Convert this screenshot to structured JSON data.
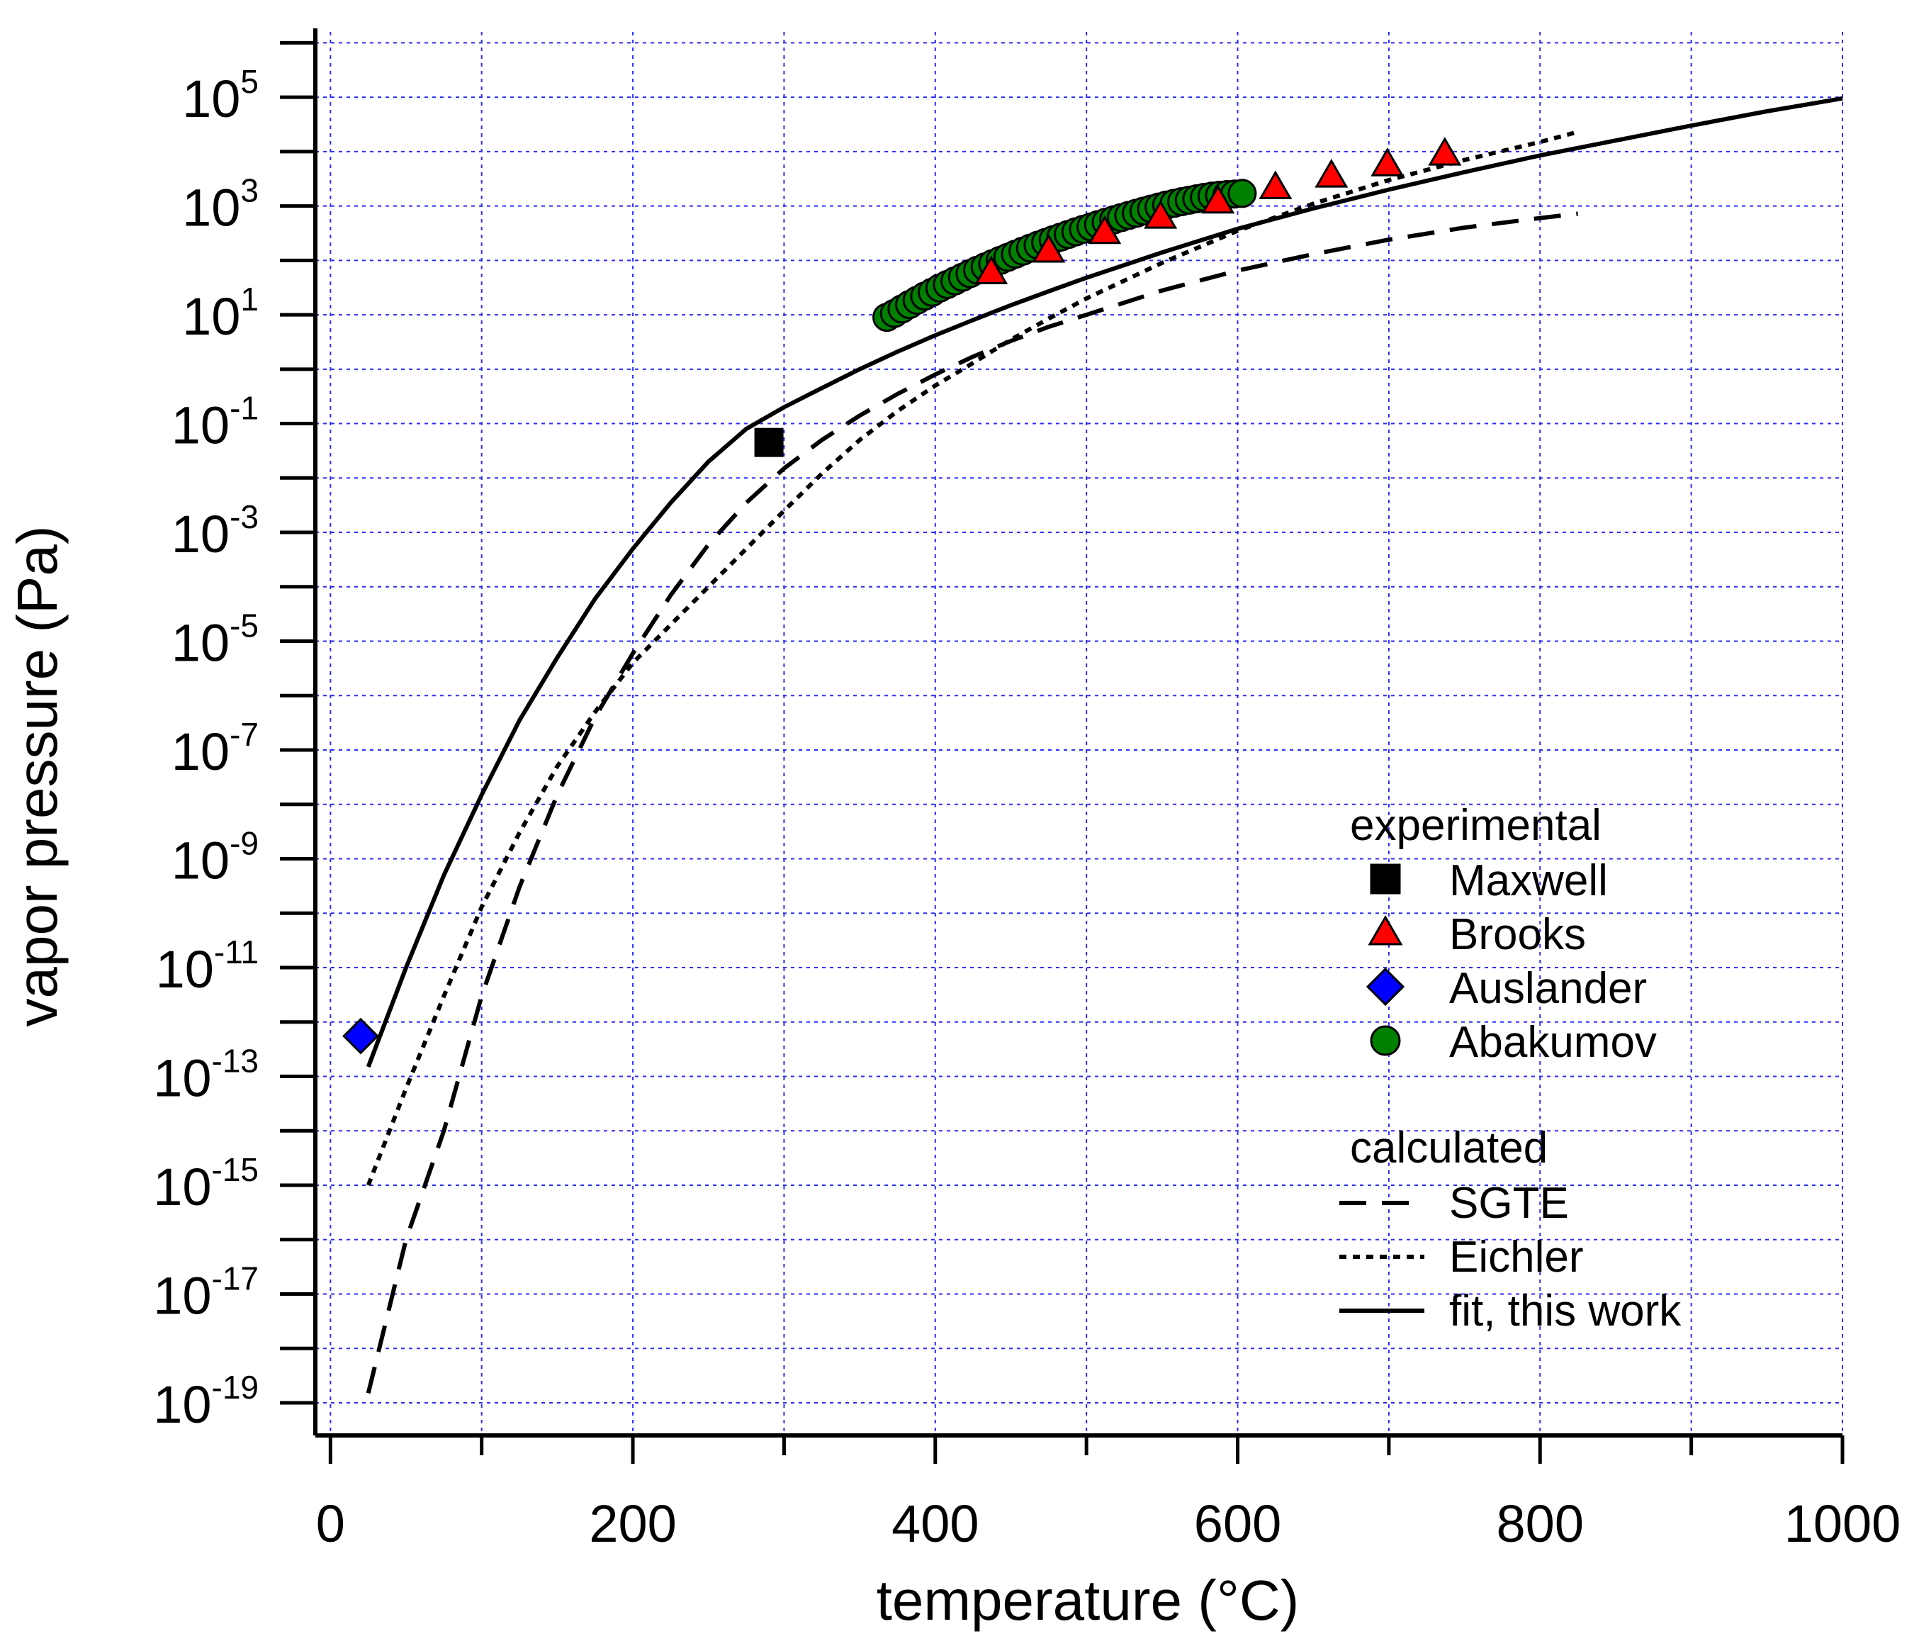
{
  "chart_data": {
    "type": "scatter",
    "xlabel": "temperature (°C)",
    "ylabel": "vapor pressure (Pa)",
    "xlim": [
      -10,
      1000
    ],
    "ylim_log10": [
      -19.6,
      6.2
    ],
    "yscale": "log",
    "grid": true,
    "grid_style": "dotted",
    "legend_position": "lower-right",
    "x_ticks": [
      "0",
      "200",
      "400",
      "600",
      "800",
      "1000"
    ],
    "x_tick_values": [
      0,
      200,
      400,
      600,
      800,
      1000
    ],
    "y_ticks": [
      {
        "base": "10",
        "exp": "5",
        "value": 5
      },
      {
        "base": "10",
        "exp": "3",
        "value": 3
      },
      {
        "base": "10",
        "exp": "1",
        "value": 1
      },
      {
        "base": "10",
        "exp": "-1",
        "value": -1
      },
      {
        "base": "10",
        "exp": "-3",
        "value": -3
      },
      {
        "base": "10",
        "exp": "-5",
        "value": -5
      },
      {
        "base": "10",
        "exp": "-7",
        "value": -7
      },
      {
        "base": "10",
        "exp": "-9",
        "value": -9
      },
      {
        "base": "10",
        "exp": "-11",
        "value": -11
      },
      {
        "base": "10",
        "exp": "-13",
        "value": -13
      },
      {
        "base": "10",
        "exp": "-15",
        "value": -15
      },
      {
        "base": "10",
        "exp": "-17",
        "value": -17
      },
      {
        "base": "10",
        "exp": "-19",
        "value": -19
      }
    ],
    "legend": {
      "experimental_header": "experimental",
      "calculated_header": "calculated"
    },
    "series": [
      {
        "name": "Maxwell",
        "group": "experimental",
        "marker": "square",
        "color": "#000000",
        "points": [
          [
            290,
            0.045
          ]
        ]
      },
      {
        "name": "Brooks",
        "group": "experimental",
        "marker": "triangle",
        "color": "#ff0000",
        "points": [
          [
            437,
            60
          ],
          [
            475,
            150
          ],
          [
            512,
            330
          ],
          [
            549,
            630
          ],
          [
            587,
            1200
          ],
          [
            625,
            2200
          ],
          [
            662,
            3600
          ],
          [
            699,
            5800
          ],
          [
            737,
            9100
          ]
        ]
      },
      {
        "name": "Auslander",
        "group": "experimental",
        "marker": "diamond",
        "color": "#0000ff",
        "points": [
          [
            20,
            5.5e-13
          ]
        ]
      },
      {
        "name": "Abakumov",
        "group": "experimental",
        "marker": "circle",
        "color": "#008000",
        "points": [
          [
            368,
            9.0
          ],
          [
            373,
            10.6
          ],
          [
            378,
            12.8
          ],
          [
            383,
            15.4
          ],
          [
            388,
            18.5
          ],
          [
            393,
            22.0
          ],
          [
            398,
            26.0
          ],
          [
            403,
            31.0
          ],
          [
            408,
            36.0
          ],
          [
            413,
            42.0
          ],
          [
            418,
            49.0
          ],
          [
            423,
            57.0
          ],
          [
            428,
            66.0
          ],
          [
            433,
            76.0
          ],
          [
            438,
            87.0
          ],
          [
            443,
            100
          ],
          [
            448,
            114
          ],
          [
            453,
            130
          ],
          [
            458,
            148
          ],
          [
            463,
            168
          ],
          [
            468,
            190
          ],
          [
            473,
            214
          ],
          [
            478,
            240
          ],
          [
            483,
            268
          ],
          [
            488,
            300
          ],
          [
            493,
            335
          ],
          [
            498,
            372
          ],
          [
            503,
            412
          ],
          [
            508,
            456
          ],
          [
            513,
            504
          ],
          [
            518,
            555
          ],
          [
            523,
            610
          ],
          [
            528,
            670
          ],
          [
            533,
            735
          ],
          [
            538,
            805
          ],
          [
            543,
            880
          ],
          [
            548,
            960
          ],
          [
            553,
            1040
          ],
          [
            558,
            1120
          ],
          [
            563,
            1200
          ],
          [
            568,
            1280
          ],
          [
            573,
            1360
          ],
          [
            578,
            1440
          ],
          [
            583,
            1520
          ],
          [
            588,
            1580
          ],
          [
            593,
            1620
          ],
          [
            598,
            1660
          ],
          [
            603,
            1700
          ]
        ]
      },
      {
        "name": "SGTE",
        "group": "calculated",
        "line": "dashed",
        "color": "#000000",
        "points": [
          [
            25,
            1.5e-19
          ],
          [
            50,
            1e-16
          ],
          [
            75,
            1e-14
          ],
          [
            100,
            3e-12
          ],
          [
            125,
            3e-10
          ],
          [
            150,
            1.5e-08
          ],
          [
            175,
            4e-07
          ],
          [
            200,
            6e-06
          ],
          [
            225,
            7e-05
          ],
          [
            250,
            0.0006
          ],
          [
            275,
            0.0035
          ],
          [
            300,
            0.015
          ],
          [
            325,
            0.05
          ],
          [
            350,
            0.14
          ],
          [
            375,
            0.35
          ],
          [
            400,
            0.8
          ],
          [
            425,
            1.7
          ],
          [
            450,
            3.3
          ],
          [
            475,
            6.0
          ],
          [
            500,
            10
          ],
          [
            550,
            28
          ],
          [
            600,
            65
          ],
          [
            650,
            130
          ],
          [
            700,
            240
          ],
          [
            750,
            400
          ],
          [
            800,
            600
          ],
          [
            825,
            720
          ]
        ]
      },
      {
        "name": "Eichler",
        "group": "calculated",
        "line": "dotted",
        "color": "#000000",
        "points": [
          [
            25,
            1e-15
          ],
          [
            50,
            6e-14
          ],
          [
            75,
            3e-12
          ],
          [
            100,
            1.3e-10
          ],
          [
            125,
            3e-09
          ],
          [
            150,
            5e-08
          ],
          [
            175,
            5e-07
          ],
          [
            200,
            4e-06
          ],
          [
            225,
            2e-05
          ],
          [
            250,
            0.0001
          ],
          [
            275,
            0.0005
          ],
          [
            300,
            0.0025
          ],
          [
            325,
            0.012
          ],
          [
            350,
            0.05
          ],
          [
            375,
            0.17
          ],
          [
            400,
            0.5
          ],
          [
            425,
            1.3
          ],
          [
            450,
            3.5
          ],
          [
            475,
            8.5
          ],
          [
            500,
            20
          ],
          [
            550,
            90
          ],
          [
            600,
            350
          ],
          [
            650,
            1100
          ],
          [
            700,
            3000
          ],
          [
            750,
            7000
          ],
          [
            800,
            15000
          ],
          [
            825,
            23000
          ]
        ]
      },
      {
        "name": "fit, this work",
        "group": "calculated",
        "line": "solid",
        "color": "#000000",
        "points": [
          [
            25,
            1.5e-13
          ],
          [
            50,
            1e-11
          ],
          [
            75,
            5e-10
          ],
          [
            100,
            1.5e-08
          ],
          [
            125,
            3.5e-07
          ],
          [
            150,
            5e-06
          ],
          [
            175,
            6e-05
          ],
          [
            200,
            0.0005
          ],
          [
            225,
            0.0035
          ],
          [
            250,
            0.02
          ],
          [
            275,
            0.08
          ],
          [
            300,
            0.2
          ],
          [
            325,
            0.45
          ],
          [
            350,
            1.0
          ],
          [
            375,
            2.1
          ],
          [
            400,
            4.2
          ],
          [
            425,
            8.0
          ],
          [
            450,
            15
          ],
          [
            475,
            27
          ],
          [
            500,
            48
          ],
          [
            550,
            140
          ],
          [
            600,
            380
          ],
          [
            650,
            900
          ],
          [
            700,
            2000
          ],
          [
            750,
            4200
          ],
          [
            800,
            8500
          ],
          [
            850,
            16000
          ],
          [
            900,
            30000
          ],
          [
            950,
            55000
          ],
          [
            1000,
            95000
          ]
        ]
      }
    ]
  }
}
